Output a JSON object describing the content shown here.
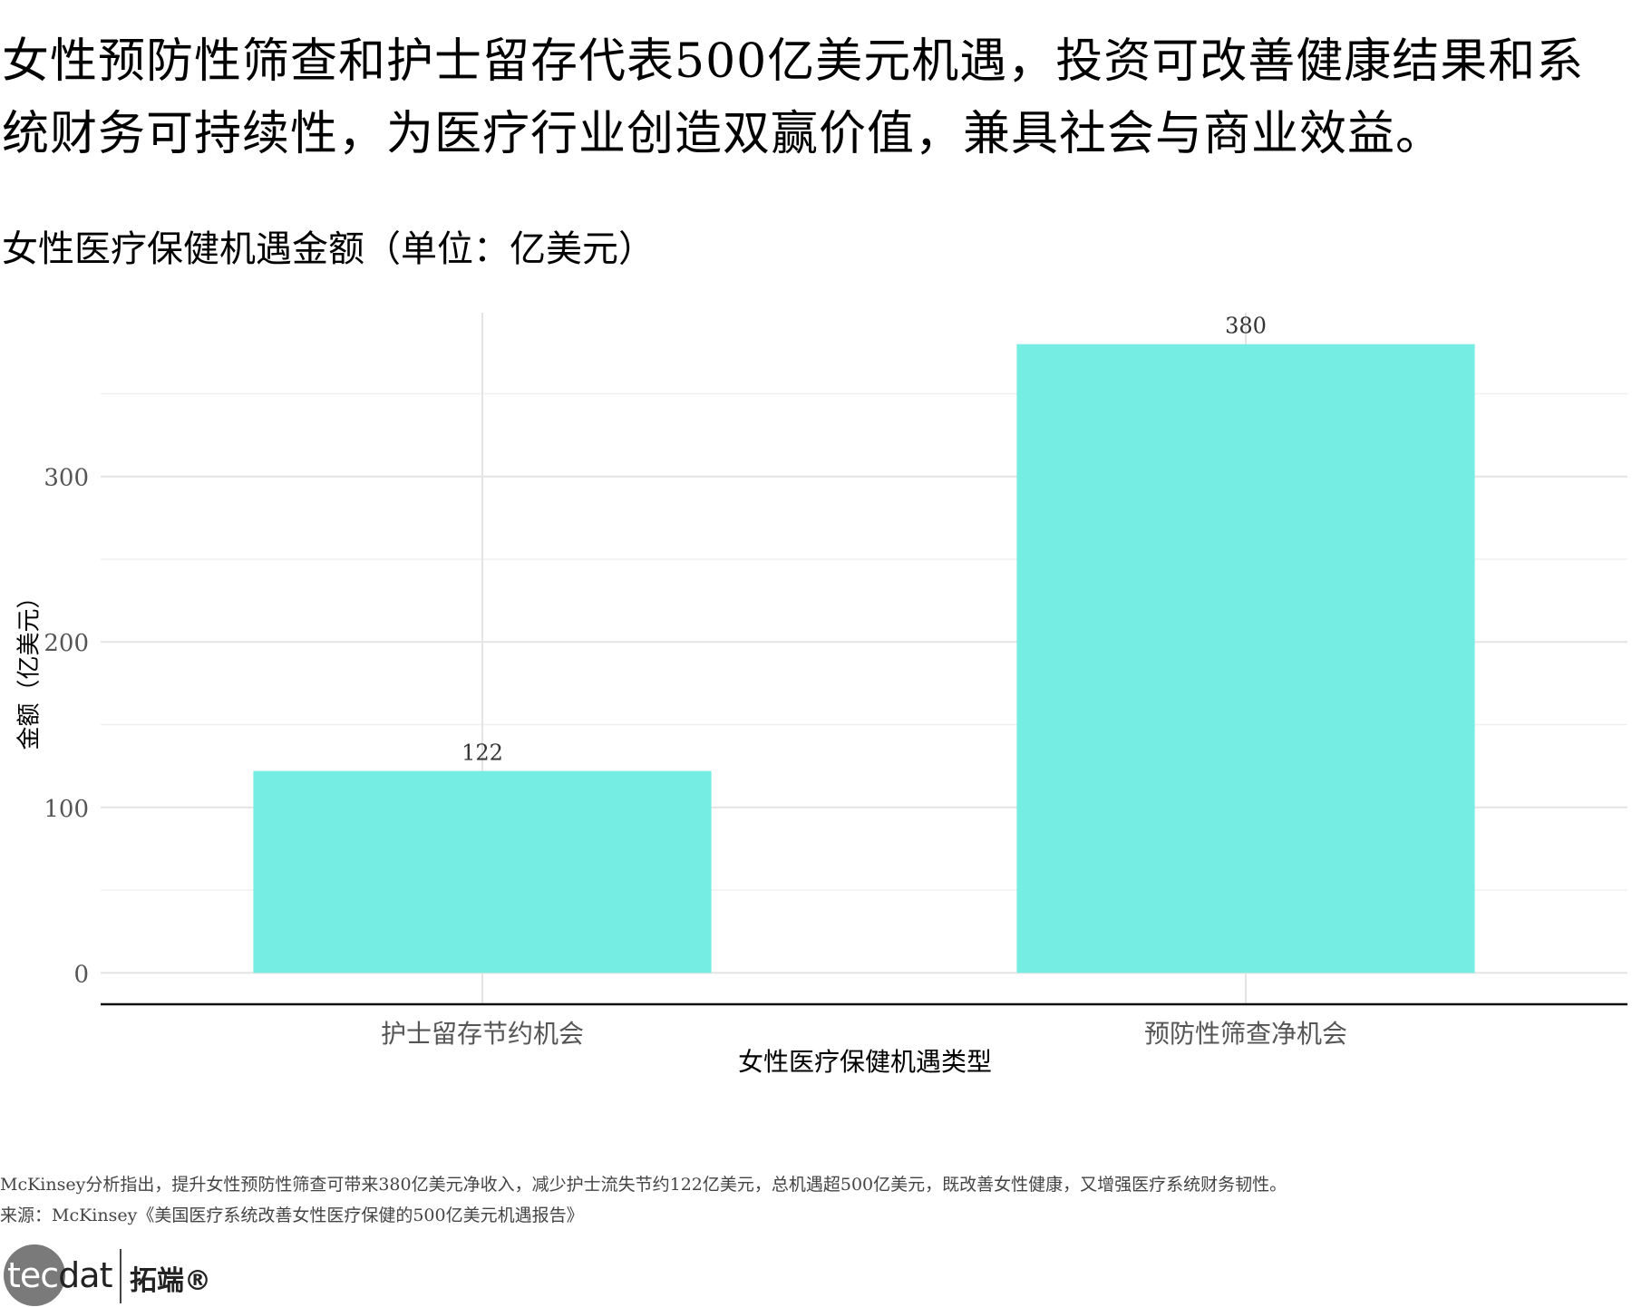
{
  "headline": "女性预防性筛查和护士留存代表500亿美元机遇，投资可改善健康结果和系统财务可持续性，为医疗行业创造双赢价值，兼具社会与商业效益。",
  "caption": {
    "line1": "McKinsey分析指出，提升女性预防性筛查可带来380亿美元净收入，减少护士流失节约122亿美元，总机遇超500亿美元，既改善女性健康，又增强医疗系统财务韧性。",
    "line2": "来源：McKinsey《美国医疗系统改善女性医疗保健的500亿美元机遇报告》"
  },
  "logo": {
    "brand_en_1": "tec",
    "brand_en_2": "dat",
    "brand_cn": "拓端®"
  },
  "chart_data": {
    "type": "bar",
    "title": "女性医疗保健机遇金额（单位：亿美元）",
    "xlabel": "女性医疗保健机遇类型",
    "ylabel": "金额（亿美元）",
    "categories": [
      "护士留存节约机会",
      "预防性筛查净机会"
    ],
    "values": [
      122,
      380
    ],
    "data_labels": [
      "122",
      "380"
    ],
    "ylim": [
      -19,
      399
    ],
    "yticks": [
      0,
      100,
      200,
      300
    ],
    "ytick_labels": [
      "0",
      "100",
      "200",
      "300"
    ],
    "bar_color": "#76EDE3",
    "grid": true,
    "legend": "none"
  }
}
